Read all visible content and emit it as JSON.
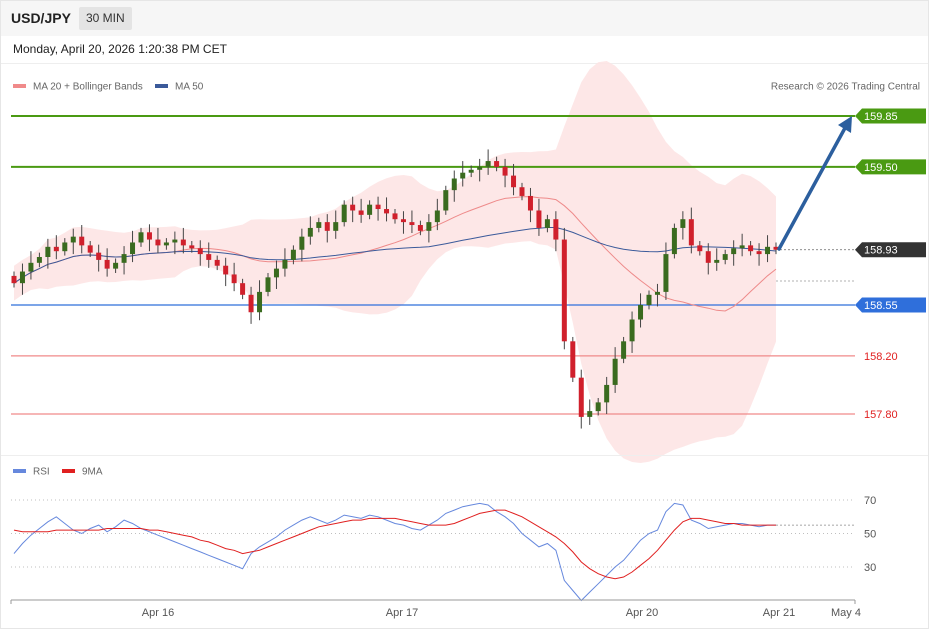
{
  "header": {
    "symbol": "USD/JPY",
    "timeframe": "30 MIN",
    "datetime": "Monday, April 20, 2026 1:20:38 PM CET"
  },
  "legend": {
    "ma20": "MA 20 + Bollinger Bands",
    "ma50": "MA 50",
    "credit": "Research © 2026 Trading Central"
  },
  "rsi_legend": {
    "rsi": "RSI",
    "ma9": "9MA"
  },
  "colors": {
    "up": "#3a6b1f",
    "down": "#d0202c",
    "resistance": "#4a9a12",
    "pivot": "#2f6fdb",
    "support": "#f08a8a",
    "last": "#333333",
    "ma50": "#3b5a9a",
    "ma20": "#ee8a8a",
    "band": "#fde3e3",
    "arrow": "#2c5f9e",
    "rsi": "#6688dd",
    "rsi_ma": "#e02020"
  },
  "chart_data": [
    {
      "type": "candlestick",
      "x_ticks": [
        "Apr 16",
        "Apr 17",
        "Apr 20",
        "Apr 21",
        "May 4"
      ],
      "levels": [
        {
          "label": "159.85",
          "value": 159.85,
          "kind": "resistance"
        },
        {
          "label": "159.50",
          "value": 159.5,
          "kind": "resistance"
        },
        {
          "label": "158.93",
          "value": 158.93,
          "kind": "last"
        },
        {
          "label": "158.55",
          "value": 158.55,
          "kind": "pivot"
        },
        {
          "label": "158.20",
          "value": 158.2,
          "kind": "support"
        },
        {
          "label": "157.80",
          "value": 157.8,
          "kind": "support"
        }
      ],
      "forecast_target": 159.85,
      "close": [
        158.7,
        158.78,
        158.84,
        158.88,
        158.95,
        158.92,
        158.98,
        159.02,
        158.96,
        158.91,
        158.86,
        158.8,
        158.84,
        158.9,
        158.98,
        159.05,
        159.0,
        158.96,
        158.98,
        159.0,
        158.96,
        158.94,
        158.9,
        158.86,
        158.82,
        158.76,
        158.7,
        158.62,
        158.5,
        158.64,
        158.74,
        158.8,
        158.86,
        158.93,
        159.02,
        159.08,
        159.12,
        159.06,
        159.12,
        159.24,
        159.2,
        159.17,
        159.24,
        159.21,
        159.18,
        159.14,
        159.12,
        159.1,
        159.06,
        159.12,
        159.2,
        159.34,
        159.42,
        159.46,
        159.48,
        159.5,
        159.54,
        159.5,
        159.44,
        159.36,
        159.3,
        159.2,
        159.08,
        159.14,
        159.0,
        158.3,
        158.05,
        157.78,
        157.82,
        157.88,
        158.0,
        158.18,
        158.3,
        158.45,
        158.55,
        158.62,
        158.64,
        158.9,
        159.08,
        159.14,
        158.96,
        158.92,
        158.84,
        158.86,
        158.9,
        158.94,
        158.96,
        158.92,
        158.9,
        158.95,
        158.93
      ],
      "rsi": {
        "yticks": [
          70,
          50,
          30
        ],
        "rsi": [
          38,
          44,
          49,
          53,
          57,
          60,
          56,
          52,
          50,
          53,
          55,
          51,
          54,
          58,
          56,
          53,
          51,
          49,
          47,
          45,
          43,
          41,
          39,
          37,
          35,
          33,
          31,
          29,
          38,
          42,
          45,
          48,
          52,
          55,
          58,
          60,
          58,
          56,
          58,
          61,
          60,
          59,
          61,
          60,
          58,
          56,
          55,
          53,
          52,
          55,
          58,
          62,
          64,
          66,
          67,
          68,
          67,
          63,
          60,
          56,
          50,
          46,
          42,
          44,
          40,
          22,
          16,
          10,
          15,
          20,
          25,
          30,
          34,
          40,
          46,
          50,
          52,
          63,
          68,
          67,
          58,
          56,
          53,
          54,
          55,
          56,
          56,
          55,
          54,
          55,
          55
        ],
        "rsi_ma": [
          52,
          51,
          51,
          51,
          51,
          52,
          52,
          52,
          52,
          52,
          52,
          53,
          53,
          53,
          53,
          53,
          52,
          52,
          51,
          50,
          49,
          48,
          46,
          45,
          43,
          41,
          40,
          38,
          39,
          40,
          42,
          44,
          46,
          48,
          50,
          52,
          54,
          55,
          56,
          57,
          58,
          58,
          59,
          59,
          59,
          59,
          58,
          57,
          56,
          55,
          55,
          55,
          56,
          58,
          60,
          62,
          63,
          64,
          64,
          62,
          60,
          57,
          54,
          51,
          48,
          44,
          39,
          33,
          29,
          26,
          24,
          23,
          24,
          27,
          31,
          35,
          40,
          46,
          52,
          57,
          59,
          59,
          58,
          57,
          56,
          56,
          55,
          55,
          55,
          55,
          55
        ]
      }
    }
  ]
}
